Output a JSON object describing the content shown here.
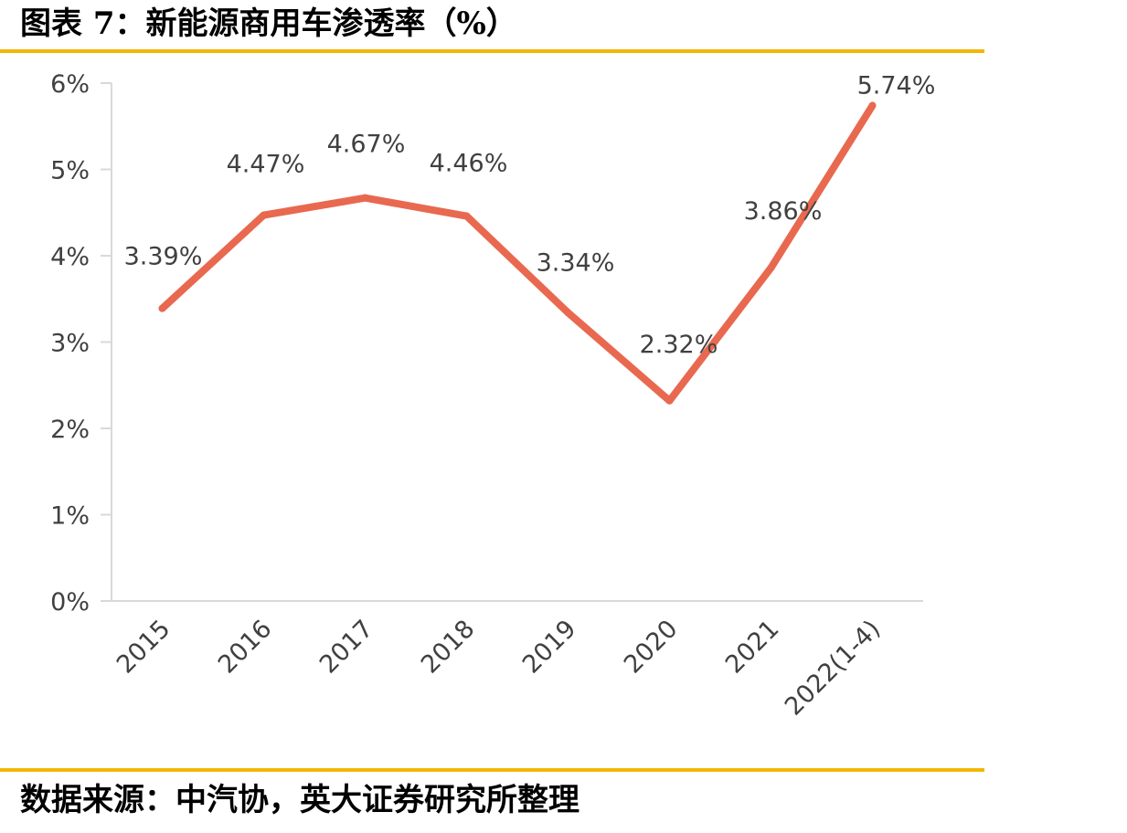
{
  "header": {
    "title": "图表 7：新能源商用车渗透率（%）",
    "rule_color": "#F2B705"
  },
  "footer": {
    "source": "数据来源：中汽协，英大证券研究所整理"
  },
  "chart_data": {
    "type": "line",
    "title": "图表 7：新能源商用车渗透率（%）",
    "xlabel": "",
    "ylabel": "",
    "categories": [
      "2015",
      "2016",
      "2017",
      "2018",
      "2019",
      "2020",
      "2021",
      "2022(1-4)"
    ],
    "series": [
      {
        "values": [
          3.39,
          4.47,
          4.67,
          4.46,
          3.34,
          2.32,
          3.86,
          5.74
        ],
        "data_labels": [
          "3.39%",
          "4.47%",
          "4.67%",
          "4.46%",
          "3.34%",
          "2.32%",
          "3.86%",
          "5.74%"
        ],
        "color": "#E8694F"
      }
    ],
    "ylim": [
      0,
      6
    ],
    "yticks": [
      0,
      1,
      2,
      3,
      4,
      5,
      6
    ],
    "ytick_labels": [
      "0%",
      "1%",
      "2%",
      "3%",
      "4%",
      "5%",
      "6%"
    ],
    "grid": false,
    "legend": "none",
    "axis_color": "#D9D9D9"
  }
}
